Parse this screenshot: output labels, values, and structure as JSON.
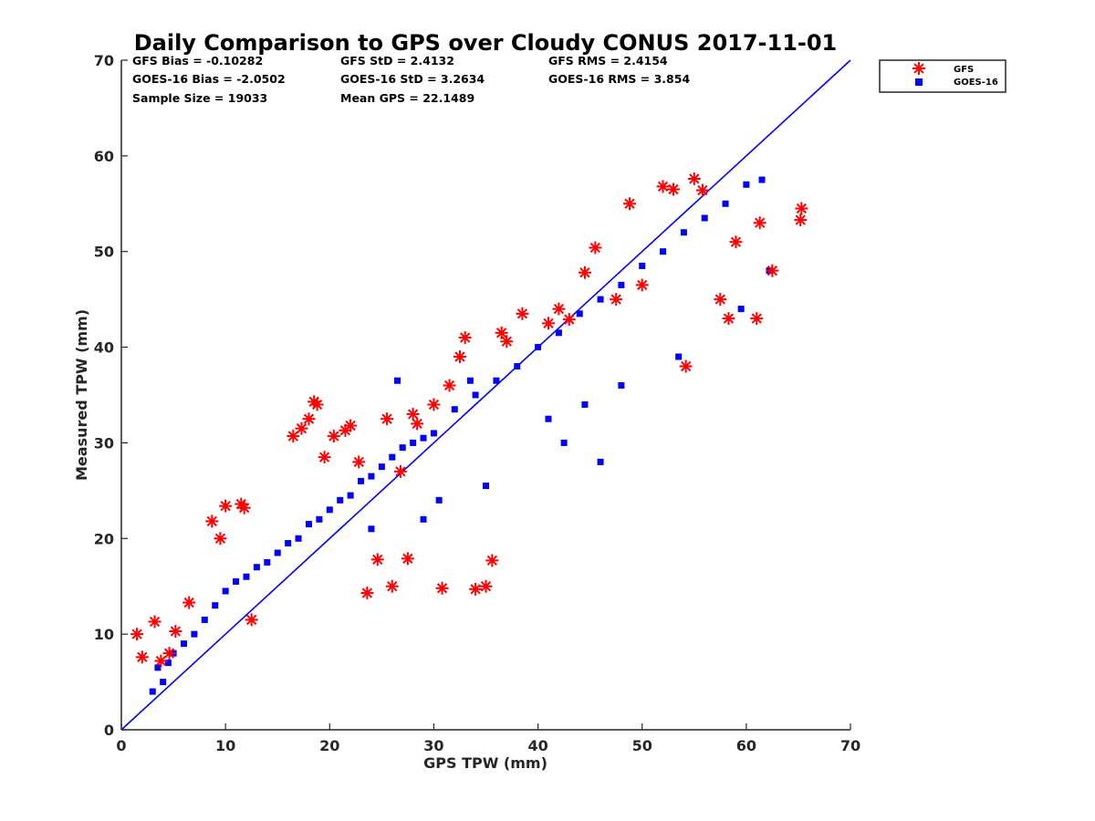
{
  "chart_data": {
    "type": "scatter",
    "title": "Daily Comparison to GPS over Cloudy CONUS 2017-11-01",
    "xlabel": "GPS TPW (mm)",
    "ylabel": "Measured TPW (mm)",
    "xlim": [
      0,
      70
    ],
    "ylim": [
      0,
      70
    ],
    "xticks": [
      "0",
      "10",
      "20",
      "30",
      "40",
      "50",
      "60",
      "70"
    ],
    "yticks": [
      "0",
      "10",
      "20",
      "30",
      "40",
      "50",
      "60",
      "70"
    ],
    "grid": false,
    "legend_position": "outside-top-right",
    "stats": [
      [
        "GFS Bias = -0.10282",
        "GFS StD = 2.4132",
        "GFS RMS = 2.4154"
      ],
      [
        "GOES-16 Bias = -2.0502",
        "GOES-16 StD = 3.2634",
        "GOES-16 RMS = 3.854"
      ],
      [
        "Sample Size = 19033",
        "Mean GPS = 22.1489"
      ]
    ],
    "reference_line": {
      "x": [
        0,
        70
      ],
      "y": [
        0,
        70
      ],
      "color": "#0000ff"
    },
    "series": [
      {
        "name": "GFS",
        "marker": "asterisk",
        "color": "#ff0000",
        "x": [
          1.5,
          2.0,
          3.2,
          3.8,
          4.6,
          5.2,
          6.5,
          8.7,
          9.5,
          10.0,
          11.5,
          11.8,
          12.5,
          16.5,
          17.3,
          18.0,
          18.5,
          18.8,
          19.5,
          20.4,
          21.5,
          22.0,
          23.6,
          24.6,
          26.0,
          27.5,
          28.4,
          30.0,
          30.8,
          31.5,
          33.0,
          34.0,
          35.0,
          35.6,
          37.0,
          41.0,
          43.0,
          45.5,
          48.8,
          52.0,
          53.0,
          55.0,
          55.8,
          57.5,
          58.3,
          61.0,
          61.3,
          62.5,
          65.2,
          65.3,
          25.5,
          26.8,
          28.0,
          38.5,
          42.0,
          47.5,
          50.0,
          54.2,
          59.0,
          44.5,
          36.5,
          32.5,
          22.8
        ],
        "y": [
          10.0,
          7.6,
          11.3,
          7.2,
          8.0,
          10.3,
          13.3,
          21.8,
          20.0,
          23.4,
          23.6,
          23.2,
          11.5,
          30.7,
          31.5,
          32.5,
          34.3,
          34.0,
          28.5,
          30.7,
          31.3,
          31.8,
          14.3,
          17.8,
          15.0,
          17.9,
          32.0,
          34.0,
          14.8,
          36.0,
          41.0,
          14.7,
          15.0,
          17.7,
          40.6,
          42.5,
          42.9,
          50.4,
          55.0,
          56.8,
          56.5,
          57.6,
          56.4,
          45.0,
          43.0,
          43.0,
          53.0,
          48.0,
          53.3,
          54.5,
          32.5,
          27.0,
          33.0,
          43.5,
          44.0,
          45.0,
          46.5,
          38.0,
          51.0,
          47.8,
          41.5,
          39.0,
          28.0
        ]
      },
      {
        "name": "GOES-16",
        "marker": "square",
        "color": "#0000ff",
        "x": [
          3.0,
          3.5,
          4.0,
          4.5,
          5.0,
          6.0,
          7.0,
          8.0,
          9.0,
          10.0,
          11.0,
          12.0,
          13.0,
          14.0,
          15.0,
          16.0,
          17.0,
          18.0,
          19.0,
          20.0,
          21.0,
          22.0,
          23.0,
          24.0,
          25.0,
          26.0,
          27.0,
          28.0,
          29.0,
          30.0,
          32.0,
          34.0,
          36.0,
          38.0,
          40.0,
          42.0,
          44.0,
          46.0,
          48.0,
          50.0,
          52.0,
          54.0,
          56.0,
          58.0,
          60.0,
          61.5,
          62.2,
          46.0,
          30.5,
          35.0,
          33.5,
          29.0,
          26.5,
          24.0,
          42.5,
          41.0,
          44.5,
          48.0,
          53.5,
          59.5
        ],
        "y": [
          4.0,
          6.5,
          5.0,
          7.0,
          8.0,
          9.0,
          10.0,
          11.5,
          13.0,
          14.5,
          15.5,
          16.0,
          17.0,
          17.5,
          18.5,
          19.5,
          20.0,
          21.5,
          22.0,
          23.0,
          24.0,
          24.5,
          26.0,
          26.5,
          27.5,
          28.5,
          29.5,
          30.0,
          30.5,
          31.0,
          33.5,
          35.0,
          36.5,
          38.0,
          40.0,
          41.5,
          43.5,
          45.0,
          46.5,
          48.5,
          50.0,
          52.0,
          53.5,
          55.0,
          57.0,
          57.5,
          48.0,
          28.0,
          24.0,
          25.5,
          36.5,
          22.0,
          36.5,
          21.0,
          30.0,
          32.5,
          34.0,
          36.0,
          39.0,
          44.0
        ]
      }
    ]
  }
}
